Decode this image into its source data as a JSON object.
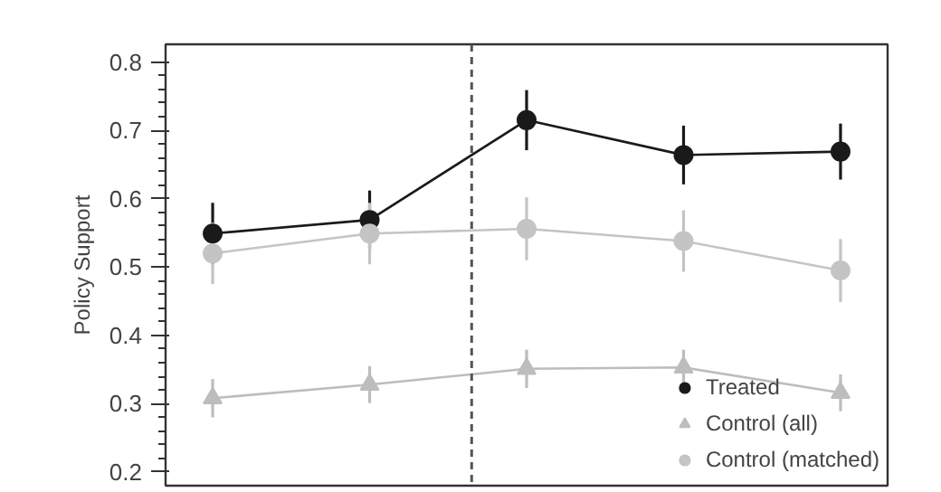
{
  "chart_data": {
    "type": "line",
    "ylabel": "Policy Support",
    "categories": [
      null,
      null,
      null,
      null,
      null
    ],
    "ylim": [
      0.18,
      0.826
    ],
    "yticks": [
      0.2,
      0.3,
      0.4,
      0.5,
      0.6,
      0.7,
      0.8
    ],
    "tick_labels": "y",
    "grid": false,
    "legend": "bottom right",
    "series": [
      {
        "name": "Treated",
        "color": "#1a1a1a",
        "marker": "circle",
        "values": [
          0.549,
          0.569,
          0.715,
          0.664,
          0.669
        ],
        "errors": [
          0.045,
          0.043,
          0.044,
          0.043,
          0.041
        ]
      },
      {
        "name": "Control (all)",
        "color": "#bdbdbd",
        "marker": "triangle",
        "values": [
          0.308,
          0.328,
          0.351,
          0.353,
          0.316
        ],
        "errors": [
          0.028,
          0.027,
          0.028,
          0.026,
          0.027
        ]
      },
      {
        "name": "Control (matched)",
        "color": "#c4c4c4",
        "marker": "circle",
        "values": [
          0.52,
          0.549,
          0.556,
          0.538,
          0.495
        ],
        "errors": [
          0.045,
          0.045,
          0.046,
          0.045,
          0.046
        ]
      }
    ]
  }
}
